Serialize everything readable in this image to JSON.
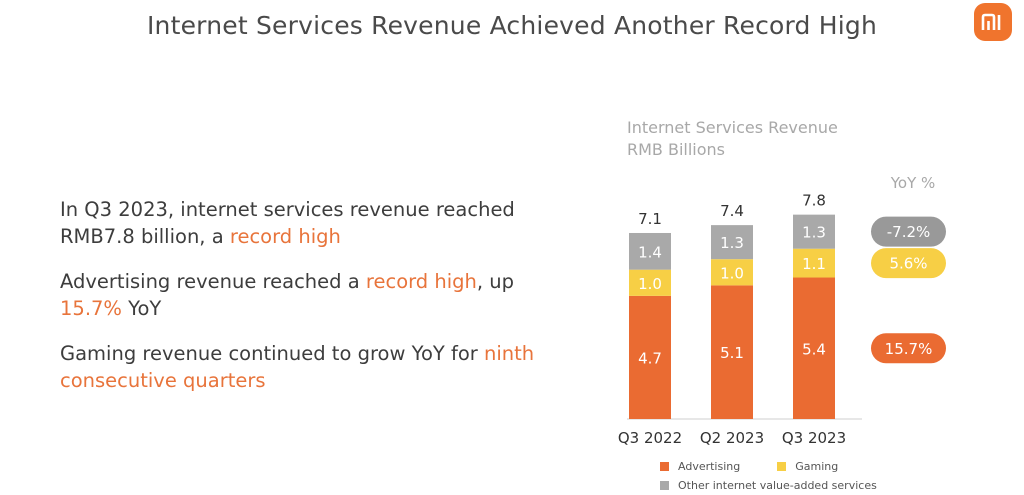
{
  "slide": {
    "title": "Internet Services Revenue Achieved Another Record High",
    "logo_text": "mi"
  },
  "bullets": [
    {
      "before": "In Q3 2023, internet services revenue reached RMB7.8 billion, a ",
      "hl1": "record high",
      "middle": "",
      "hl2": "",
      "after": ""
    },
    {
      "before": "Advertising revenue reached a ",
      "hl1": "record high",
      "middle": ", up ",
      "hl2": "15.7%",
      "after": " YoY"
    },
    {
      "before": "Gaming revenue continued to grow YoY for ",
      "hl1": "ninth consecutive quarters",
      "middle": "",
      "hl2": "",
      "after": ""
    }
  ],
  "chart_data": {
    "type": "bar",
    "stacked": true,
    "title": "Internet Services Revenue",
    "subtitle": "RMB Billions",
    "categories": [
      "Q3 2022",
      "Q2 2023",
      "Q3 2023"
    ],
    "series": [
      {
        "name": "Advertising",
        "values": [
          4.7,
          5.1,
          5.4
        ],
        "color": "#ea6b32"
      },
      {
        "name": "Gaming",
        "values": [
          1.0,
          1.0,
          1.1
        ],
        "color": "#f7cf45"
      },
      {
        "name": "Other internet value-added services",
        "values": [
          1.4,
          1.3,
          1.3
        ],
        "color": "#a9a9a9"
      }
    ],
    "totals": [
      "7.1",
      "7.4",
      "7.8"
    ],
    "yoy_label": "YoY %",
    "yoy": [
      {
        "series": "Other internet value-added services",
        "value": "-7.2%",
        "color": "#999999"
      },
      {
        "series": "Gaming",
        "value": "5.6%",
        "color": "#f7cf45"
      },
      {
        "series": "Advertising",
        "value": "15.7%",
        "color": "#ea6b32"
      }
    ]
  }
}
